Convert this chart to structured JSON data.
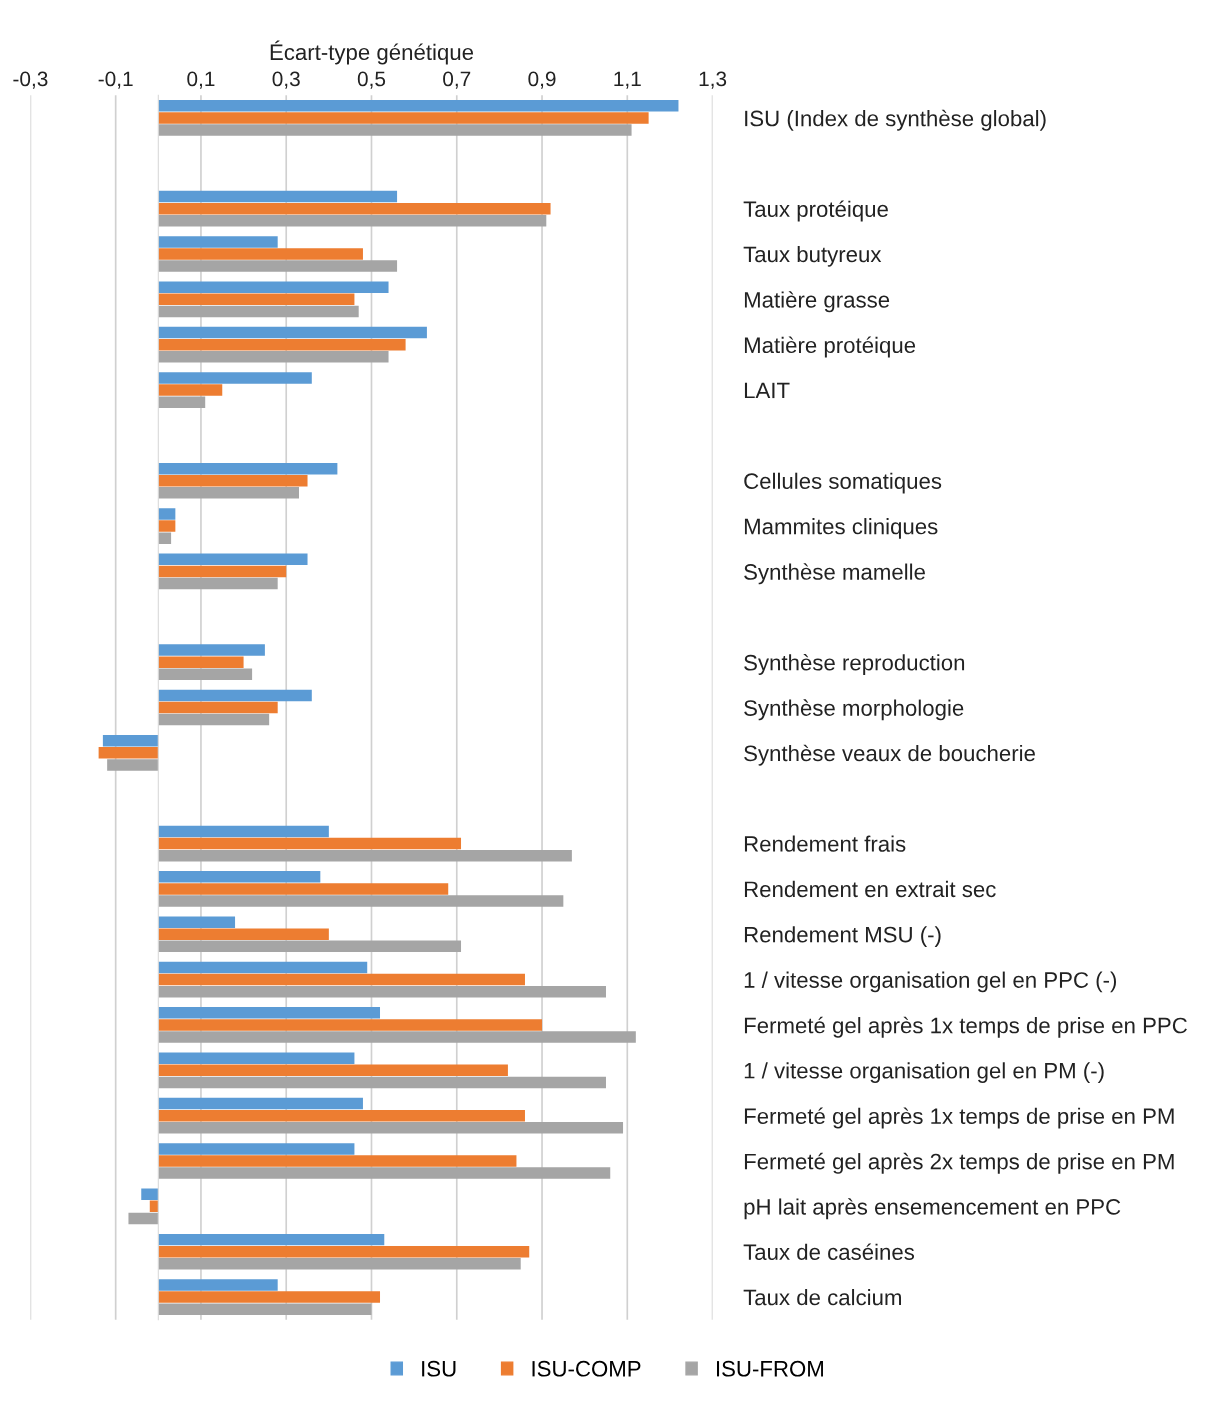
{
  "chart_data": {
    "type": "bar",
    "orientation": "horizontal",
    "xlabel": "Écart-type génétique",
    "categories": [
      "ISU (Index de synthèse global)",
      null,
      "Taux protéique",
      "Taux butyreux",
      "Matière grasse",
      "Matière protéique",
      "LAIT",
      null,
      "Cellules somatiques",
      "Mammites cliniques",
      "Synthèse mamelle",
      null,
      "Synthèse reproduction",
      "Synthèse morphologie",
      "Synthèse veaux de boucherie",
      null,
      "Rendement frais",
      "Rendement en extrait sec",
      "Rendement MSU (-)",
      "1 / vitesse organisation gel en PPC (-)",
      "Fermeté gel après 1x temps de prise en PPC",
      "1 / vitesse organisation gel en PM (-)",
      "Fermeté gel après 1x temps de prise en PM",
      "Fermeté gel après 2x temps de prise en PM",
      "pH lait après ensemencement en PPC",
      "Taux de caséines",
      "Taux de calcium"
    ],
    "series": [
      {
        "name": "ISU",
        "color": "#5b9bd5",
        "values": [
          1.22,
          null,
          0.56,
          0.28,
          0.54,
          0.63,
          0.36,
          null,
          0.42,
          0.04,
          0.35,
          null,
          0.25,
          0.36,
          -0.13,
          null,
          0.4,
          0.38,
          0.18,
          0.49,
          0.52,
          0.46,
          0.48,
          0.46,
          -0.04,
          0.53,
          0.28
        ]
      },
      {
        "name": "ISU-COMP",
        "color": "#ed7d31",
        "values": [
          1.15,
          null,
          0.92,
          0.48,
          0.46,
          0.58,
          0.15,
          null,
          0.35,
          0.04,
          0.3,
          null,
          0.2,
          0.28,
          -0.14,
          null,
          0.71,
          0.68,
          0.4,
          0.86,
          0.9,
          0.82,
          0.86,
          0.84,
          -0.02,
          0.87,
          0.52
        ]
      },
      {
        "name": "ISU-FROM",
        "color": "#a5a5a5",
        "values": [
          1.11,
          null,
          0.91,
          0.56,
          0.47,
          0.54,
          0.11,
          null,
          0.33,
          0.03,
          0.28,
          null,
          0.22,
          0.26,
          -0.12,
          null,
          0.97,
          0.95,
          0.71,
          1.05,
          1.12,
          1.05,
          1.09,
          1.06,
          -0.07,
          0.85,
          0.5
        ]
      }
    ],
    "xlim": [
      -0.3,
      1.3
    ],
    "xticks": [
      {
        "value": -0.3,
        "label": "-0,3"
      },
      {
        "value": -0.1,
        "label": "-0,1"
      },
      {
        "value": 0.1,
        "label": "0,1"
      },
      {
        "value": 0.3,
        "label": "0,3"
      },
      {
        "value": 0.5,
        "label": "0,5"
      },
      {
        "value": 0.7,
        "label": "0,7"
      },
      {
        "value": 0.9,
        "label": "0,9"
      },
      {
        "value": 1.1,
        "label": "1,1"
      },
      {
        "value": 1.3,
        "label": "1,3"
      }
    ],
    "grid": "x",
    "legend": "bottom"
  }
}
